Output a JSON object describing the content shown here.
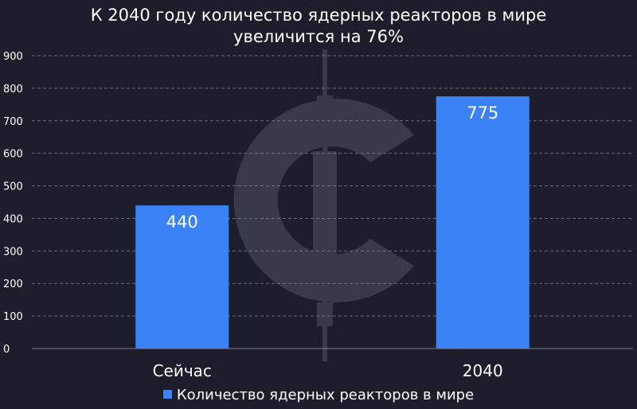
{
  "title": {
    "line1": "К 2040 году количество ядерных реакторов в мире",
    "line2": "увеличится на 76%"
  },
  "legend": {
    "label": "Количество ядерных реакторов в мире",
    "placement": "bottom-center"
  },
  "colors": {
    "background": "#1e1d2c",
    "bar": "#3b82f6",
    "grid": "#8a8a9a",
    "watermark": "#3a3947"
  },
  "watermark": {
    "icon": "c-logo-watermark-icon"
  },
  "chart_data": {
    "type": "bar",
    "categories": [
      "Сейчас",
      "2040"
    ],
    "series": [
      {
        "name": "Количество ядерных реакторов в мире",
        "values": [
          440,
          775
        ]
      }
    ],
    "data_labels": [
      "440",
      "775"
    ],
    "ylim": [
      0,
      900
    ],
    "yticks": [
      0,
      100,
      200,
      300,
      400,
      500,
      600,
      700,
      800,
      900
    ],
    "grid": true,
    "grid_style": "dashed-horizontal",
    "xlabel": "",
    "ylabel": ""
  }
}
